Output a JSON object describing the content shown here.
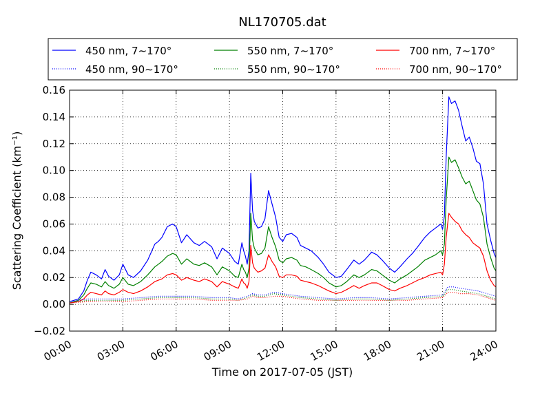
{
  "chart_data": {
    "type": "line",
    "title": "NL170705.dat",
    "xlabel": "Time on 2017-07-05 (JST)",
    "ylabel": "Scattering Coefficient (km⁻¹)",
    "xlim": [
      0,
      24
    ],
    "ylim": [
      -0.02,
      0.16
    ],
    "x_tick_labels": [
      "00:00",
      "03:00",
      "06:00",
      "09:00",
      "12:00",
      "15:00",
      "18:00",
      "21:00",
      "24:00"
    ],
    "y_tick_labels": [
      "−0.02",
      "0.00",
      "0.02",
      "0.04",
      "0.06",
      "0.08",
      "0.10",
      "0.12",
      "0.14",
      "0.16"
    ],
    "grid": true,
    "legend_position": "top",
    "series": [
      {
        "name": "450 nm, 7∼170°",
        "color": "#0000ff",
        "dash": "solid",
        "x": [
          0,
          0.5,
          0.8,
          1.0,
          1.2,
          1.5,
          1.8,
          2.0,
          2.2,
          2.5,
          2.8,
          3.0,
          3.3,
          3.6,
          4.0,
          4.4,
          4.8,
          5.0,
          5.2,
          5.5,
          5.8,
          6.0,
          6.3,
          6.6,
          7.0,
          7.3,
          7.6,
          8.0,
          8.3,
          8.6,
          9.0,
          9.3,
          9.5,
          9.7,
          9.8,
          9.9,
          10.0,
          10.1,
          10.2,
          10.3,
          10.4,
          10.6,
          10.8,
          11.0,
          11.2,
          11.4,
          11.6,
          11.8,
          12.0,
          12.2,
          12.5,
          12.8,
          13.0,
          13.3,
          13.6,
          14.0,
          14.3,
          14.6,
          15.0,
          15.3,
          15.6,
          16.0,
          16.3,
          16.6,
          17.0,
          17.3,
          17.6,
          18.0,
          18.3,
          18.6,
          19.0,
          19.3,
          19.6,
          20.0,
          20.3,
          20.6,
          20.9,
          21.0,
          21.1,
          21.2,
          21.35,
          21.5,
          21.7,
          21.9,
          22.1,
          22.3,
          22.5,
          22.7,
          22.9,
          23.1,
          23.3,
          23.5,
          23.7,
          23.9,
          24.0
        ],
        "y": [
          0.002,
          0.004,
          0.01,
          0.018,
          0.024,
          0.022,
          0.019,
          0.026,
          0.021,
          0.018,
          0.022,
          0.03,
          0.022,
          0.02,
          0.025,
          0.033,
          0.045,
          0.047,
          0.05,
          0.058,
          0.06,
          0.058,
          0.046,
          0.052,
          0.046,
          0.044,
          0.047,
          0.043,
          0.034,
          0.042,
          0.038,
          0.032,
          0.03,
          0.046,
          0.04,
          0.036,
          0.03,
          0.04,
          0.098,
          0.07,
          0.062,
          0.057,
          0.058,
          0.064,
          0.085,
          0.075,
          0.065,
          0.05,
          0.047,
          0.052,
          0.053,
          0.05,
          0.044,
          0.042,
          0.04,
          0.035,
          0.03,
          0.024,
          0.02,
          0.021,
          0.026,
          0.033,
          0.03,
          0.033,
          0.039,
          0.037,
          0.033,
          0.027,
          0.024,
          0.028,
          0.034,
          0.038,
          0.043,
          0.05,
          0.054,
          0.057,
          0.06,
          0.056,
          0.066,
          0.11,
          0.155,
          0.15,
          0.152,
          0.145,
          0.133,
          0.122,
          0.125,
          0.117,
          0.107,
          0.105,
          0.09,
          0.06,
          0.048,
          0.038,
          0.035
        ]
      },
      {
        "name": "550 nm, 7∼170°",
        "color": "#008000",
        "dash": "solid",
        "x": [
          0,
          0.5,
          0.8,
          1.0,
          1.2,
          1.5,
          1.8,
          2.0,
          2.2,
          2.5,
          2.8,
          3.0,
          3.3,
          3.6,
          4.0,
          4.4,
          4.8,
          5.0,
          5.2,
          5.5,
          5.8,
          6.0,
          6.3,
          6.6,
          7.0,
          7.3,
          7.6,
          8.0,
          8.3,
          8.6,
          9.0,
          9.3,
          9.5,
          9.7,
          9.8,
          9.9,
          10.0,
          10.1,
          10.2,
          10.3,
          10.4,
          10.6,
          10.8,
          11.0,
          11.2,
          11.4,
          11.6,
          11.8,
          12.0,
          12.2,
          12.5,
          12.8,
          13.0,
          13.3,
          13.6,
          14.0,
          14.3,
          14.6,
          15.0,
          15.3,
          15.6,
          16.0,
          16.3,
          16.6,
          17.0,
          17.3,
          17.6,
          18.0,
          18.3,
          18.6,
          19.0,
          19.3,
          19.6,
          20.0,
          20.3,
          20.6,
          20.9,
          21.0,
          21.1,
          21.2,
          21.35,
          21.5,
          21.7,
          21.9,
          22.1,
          22.3,
          22.5,
          22.7,
          22.9,
          23.1,
          23.3,
          23.5,
          23.7,
          23.9,
          24.0
        ],
        "y": [
          0.001,
          0.003,
          0.007,
          0.012,
          0.016,
          0.015,
          0.013,
          0.017,
          0.014,
          0.012,
          0.015,
          0.02,
          0.015,
          0.014,
          0.017,
          0.022,
          0.028,
          0.03,
          0.032,
          0.036,
          0.038,
          0.037,
          0.03,
          0.034,
          0.03,
          0.029,
          0.031,
          0.028,
          0.022,
          0.028,
          0.025,
          0.021,
          0.02,
          0.03,
          0.026,
          0.024,
          0.02,
          0.027,
          0.068,
          0.048,
          0.042,
          0.037,
          0.038,
          0.042,
          0.058,
          0.05,
          0.043,
          0.033,
          0.031,
          0.034,
          0.035,
          0.033,
          0.029,
          0.028,
          0.026,
          0.023,
          0.02,
          0.016,
          0.013,
          0.014,
          0.017,
          0.022,
          0.02,
          0.022,
          0.026,
          0.025,
          0.022,
          0.018,
          0.016,
          0.019,
          0.022,
          0.025,
          0.028,
          0.033,
          0.035,
          0.037,
          0.04,
          0.037,
          0.045,
          0.078,
          0.11,
          0.106,
          0.108,
          0.102,
          0.095,
          0.09,
          0.092,
          0.085,
          0.078,
          0.075,
          0.065,
          0.045,
          0.035,
          0.027,
          0.025
        ]
      },
      {
        "name": "700 nm, 7∼170°",
        "color": "#ff0000",
        "dash": "solid",
        "x": [
          0,
          0.5,
          0.8,
          1.0,
          1.2,
          1.5,
          1.8,
          2.0,
          2.2,
          2.5,
          2.8,
          3.0,
          3.3,
          3.6,
          4.0,
          4.4,
          4.8,
          5.0,
          5.2,
          5.5,
          5.8,
          6.0,
          6.3,
          6.6,
          7.0,
          7.3,
          7.6,
          8.0,
          8.3,
          8.6,
          9.0,
          9.3,
          9.5,
          9.7,
          9.8,
          9.9,
          10.0,
          10.1,
          10.2,
          10.3,
          10.4,
          10.6,
          10.8,
          11.0,
          11.2,
          11.4,
          11.6,
          11.8,
          12.0,
          12.2,
          12.5,
          12.8,
          13.0,
          13.3,
          13.6,
          14.0,
          14.3,
          14.6,
          15.0,
          15.3,
          15.6,
          16.0,
          16.3,
          16.6,
          17.0,
          17.3,
          17.6,
          18.0,
          18.3,
          18.6,
          19.0,
          19.3,
          19.6,
          20.0,
          20.3,
          20.6,
          20.9,
          21.0,
          21.1,
          21.2,
          21.35,
          21.5,
          21.7,
          21.9,
          22.1,
          22.3,
          22.5,
          22.7,
          22.9,
          23.1,
          23.3,
          23.5,
          23.7,
          23.9,
          24.0
        ],
        "y": [
          0.001,
          0.002,
          0.004,
          0.007,
          0.009,
          0.008,
          0.007,
          0.01,
          0.008,
          0.007,
          0.009,
          0.011,
          0.009,
          0.008,
          0.01,
          0.013,
          0.017,
          0.018,
          0.019,
          0.022,
          0.023,
          0.022,
          0.018,
          0.02,
          0.018,
          0.017,
          0.019,
          0.017,
          0.013,
          0.017,
          0.015,
          0.013,
          0.012,
          0.019,
          0.016,
          0.015,
          0.012,
          0.017,
          0.044,
          0.031,
          0.027,
          0.024,
          0.025,
          0.027,
          0.037,
          0.032,
          0.028,
          0.021,
          0.02,
          0.022,
          0.022,
          0.021,
          0.018,
          0.017,
          0.016,
          0.014,
          0.012,
          0.01,
          0.008,
          0.009,
          0.011,
          0.014,
          0.012,
          0.014,
          0.016,
          0.016,
          0.014,
          0.011,
          0.01,
          0.012,
          0.014,
          0.016,
          0.018,
          0.02,
          0.022,
          0.023,
          0.024,
          0.022,
          0.03,
          0.05,
          0.068,
          0.065,
          0.062,
          0.06,
          0.055,
          0.052,
          0.05,
          0.046,
          0.044,
          0.042,
          0.036,
          0.025,
          0.018,
          0.014,
          0.013
        ]
      },
      {
        "name": "450 nm, 90∼170°",
        "color": "#0000ff",
        "dash": "dotted",
        "x": [
          0,
          1.0,
          2.0,
          3.0,
          4.0,
          5.0,
          6.0,
          7.0,
          8.0,
          9.0,
          9.5,
          10.0,
          10.3,
          10.6,
          11.0,
          11.5,
          12.0,
          12.5,
          13.0,
          14.0,
          15.0,
          16.0,
          17.0,
          18.0,
          19.0,
          20.0,
          21.0,
          21.3,
          21.6,
          22.0,
          22.5,
          23.0,
          23.5,
          24.0
        ],
        "y": [
          0.002,
          0.004,
          0.004,
          0.004,
          0.005,
          0.006,
          0.006,
          0.006,
          0.005,
          0.005,
          0.004,
          0.006,
          0.008,
          0.007,
          0.007,
          0.009,
          0.008,
          0.007,
          0.006,
          0.005,
          0.004,
          0.005,
          0.005,
          0.004,
          0.005,
          0.006,
          0.007,
          0.013,
          0.013,
          0.012,
          0.011,
          0.01,
          0.008,
          0.006
        ]
      },
      {
        "name": "550 nm, 90∼170°",
        "color": "#008000",
        "dash": "dotted",
        "x": [
          0,
          1.0,
          2.0,
          3.0,
          4.0,
          5.0,
          6.0,
          7.0,
          8.0,
          9.0,
          9.5,
          10.0,
          10.3,
          10.6,
          11.0,
          11.5,
          12.0,
          12.5,
          13.0,
          14.0,
          15.0,
          16.0,
          17.0,
          18.0,
          19.0,
          20.0,
          21.0,
          21.3,
          21.6,
          22.0,
          22.5,
          23.0,
          23.5,
          24.0
        ],
        "y": [
          0.001,
          0.003,
          0.003,
          0.003,
          0.004,
          0.005,
          0.005,
          0.005,
          0.004,
          0.004,
          0.003,
          0.005,
          0.007,
          0.006,
          0.006,
          0.008,
          0.007,
          0.006,
          0.005,
          0.004,
          0.003,
          0.004,
          0.004,
          0.003,
          0.004,
          0.005,
          0.006,
          0.011,
          0.011,
          0.01,
          0.009,
          0.008,
          0.006,
          0.004
        ]
      },
      {
        "name": "700 nm, 90∼170°",
        "color": "#ff0000",
        "dash": "dotted",
        "x": [
          0,
          1.0,
          2.0,
          3.0,
          4.0,
          5.0,
          6.0,
          7.0,
          8.0,
          9.0,
          9.5,
          10.0,
          10.3,
          10.6,
          11.0,
          11.5,
          12.0,
          12.5,
          13.0,
          14.0,
          15.0,
          16.0,
          17.0,
          18.0,
          19.0,
          20.0,
          21.0,
          21.3,
          21.6,
          22.0,
          22.5,
          23.0,
          23.5,
          24.0
        ],
        "y": [
          0.001,
          0.002,
          0.002,
          0.002,
          0.003,
          0.004,
          0.004,
          0.004,
          0.003,
          0.003,
          0.003,
          0.004,
          0.006,
          0.005,
          0.005,
          0.006,
          0.006,
          0.005,
          0.004,
          0.003,
          0.003,
          0.003,
          0.003,
          0.003,
          0.003,
          0.004,
          0.005,
          0.009,
          0.009,
          0.008,
          0.008,
          0.007,
          0.005,
          0.003
        ]
      }
    ]
  }
}
